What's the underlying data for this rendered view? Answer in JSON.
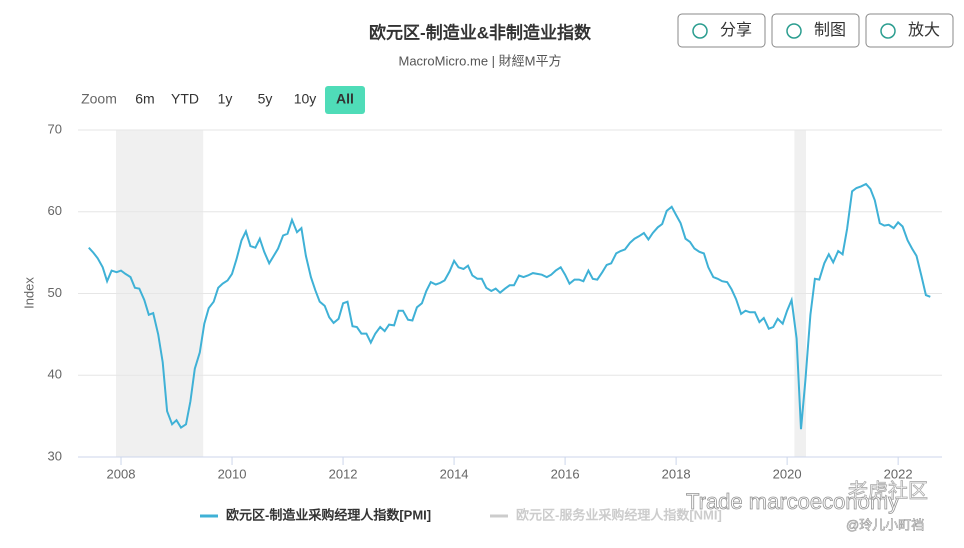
{
  "header": {
    "buttons": [
      "分享",
      "制图",
      "放大"
    ],
    "zoom_label": "Zoom",
    "zoom_options": [
      "6m",
      "YTD",
      "1y",
      "5y",
      "10y",
      "All"
    ],
    "zoom_active": 5
  },
  "watermarks": [
    "Trade marcoeconomy",
    "老虎社区",
    "@玲儿小町裆"
  ],
  "chart_data": {
    "type": "line",
    "title": "欧元区-制造业&非制造业指数",
    "subtitle": "MacroMicro.me | 財經M平方",
    "y_label": "Index",
    "xlim": [
      2007.225,
      2022.79
    ],
    "xticks": [
      2008,
      2010,
      2012,
      2014,
      2016,
      2018,
      2020,
      2022
    ],
    "ylim": [
      30,
      70
    ],
    "yticks": [
      30,
      40,
      50,
      60,
      70
    ],
    "grid": true,
    "shaded_periods": [
      [
        2007.91,
        2009.48
      ],
      [
        2020.13,
        2020.34
      ]
    ],
    "x": [
      2007.42,
      2007.5,
      2007.58,
      2007.67,
      2007.75,
      2007.83,
      2007.92,
      2008,
      2008.08,
      2008.17,
      2008.25,
      2008.33,
      2008.42,
      2008.5,
      2008.58,
      2008.67,
      2008.75,
      2008.83,
      2008.92,
      2009,
      2009.08,
      2009.17,
      2009.25,
      2009.33,
      2009.42,
      2009.5,
      2009.58,
      2009.67,
      2009.75,
      2009.83,
      2009.92,
      2010,
      2010.08,
      2010.17,
      2010.25,
      2010.33,
      2010.42,
      2010.5,
      2010.58,
      2010.67,
      2010.75,
      2010.83,
      2010.92,
      2011,
      2011.08,
      2011.17,
      2011.25,
      2011.33,
      2011.42,
      2011.5,
      2011.58,
      2011.67,
      2011.75,
      2011.83,
      2011.92,
      2012,
      2012.08,
      2012.17,
      2012.25,
      2012.33,
      2012.42,
      2012.5,
      2012.58,
      2012.67,
      2012.75,
      2012.83,
      2012.92,
      2013,
      2013.08,
      2013.17,
      2013.25,
      2013.33,
      2013.42,
      2013.5,
      2013.58,
      2013.67,
      2013.75,
      2013.83,
      2013.92,
      2014,
      2014.08,
      2014.17,
      2014.25,
      2014.33,
      2014.42,
      2014.5,
      2014.58,
      2014.67,
      2014.75,
      2014.83,
      2014.92,
      2015,
      2015.08,
      2015.17,
      2015.25,
      2015.33,
      2015.42,
      2015.5,
      2015.58,
      2015.67,
      2015.75,
      2015.83,
      2015.92,
      2016,
      2016.08,
      2016.17,
      2016.25,
      2016.33,
      2016.42,
      2016.5,
      2016.58,
      2016.67,
      2016.75,
      2016.83,
      2016.92,
      2017,
      2017.08,
      2017.17,
      2017.25,
      2017.33,
      2017.42,
      2017.5,
      2017.58,
      2017.67,
      2017.75,
      2017.83,
      2017.92,
      2018,
      2018.08,
      2018.17,
      2018.25,
      2018.33,
      2018.42,
      2018.5,
      2018.58,
      2018.67,
      2018.75,
      2018.83,
      2018.92,
      2019,
      2019.08,
      2019.17,
      2019.25,
      2019.33,
      2019.42,
      2019.5,
      2019.58,
      2019.67,
      2019.75,
      2019.83,
      2019.92,
      2020,
      2020.08,
      2020.17,
      2020.25,
      2020.33,
      2020.42,
      2020.5,
      2020.58,
      2020.67,
      2020.75,
      2020.83,
      2020.92,
      2021,
      2021.08,
      2021.17,
      2021.25,
      2021.33,
      2021.42,
      2021.5,
      2021.58,
      2021.67,
      2021.75,
      2021.83,
      2021.92,
      2022,
      2022.08,
      2022.17,
      2022.25,
      2022.33,
      2022.42,
      2022.5,
      2022.58
    ],
    "series": [
      {
        "name": "欧元区-制造业采购经理人指数[PMI]",
        "color": "#3fb1d6",
        "values": [
          55.6,
          55.0,
          54.3,
          53.2,
          51.5,
          52.8,
          52.6,
          52.8,
          52.4,
          52.0,
          50.7,
          50.6,
          49.2,
          47.4,
          47.6,
          45.0,
          41.6,
          35.6,
          34.0,
          34.5,
          33.6,
          34.0,
          36.8,
          40.8,
          42.8,
          46.3,
          48.2,
          49.0,
          50.7,
          51.2,
          51.6,
          52.4,
          54.2,
          56.5,
          57.6,
          55.8,
          55.6,
          56.7,
          55.1,
          53.7,
          54.6,
          55.5,
          57.1,
          57.3,
          59.0,
          57.5,
          58.0,
          54.6,
          52.0,
          50.4,
          49.0,
          48.5,
          47.1,
          46.4,
          46.9,
          48.8,
          49.0,
          46.0,
          45.9,
          45.1,
          45.1,
          44.0,
          45.1,
          45.9,
          45.4,
          46.2,
          46.1,
          47.9,
          47.9,
          46.8,
          46.7,
          48.3,
          48.8,
          50.3,
          51.4,
          51.1,
          51.3,
          51.6,
          52.7,
          54.0,
          53.2,
          53.0,
          53.4,
          52.2,
          51.8,
          51.8,
          50.7,
          50.3,
          50.6,
          50.1,
          50.6,
          51.0,
          51.0,
          52.2,
          52.0,
          52.2,
          52.5,
          52.4,
          52.3,
          52.0,
          52.3,
          52.8,
          53.2,
          52.3,
          51.2,
          51.7,
          51.7,
          51.5,
          52.8,
          51.8,
          51.7,
          52.6,
          53.5,
          53.7,
          54.9,
          55.2,
          55.4,
          56.2,
          56.7,
          57.0,
          57.4,
          56.6,
          57.4,
          58.1,
          58.5,
          60.1,
          60.6,
          59.6,
          58.6,
          56.7,
          56.3,
          55.5,
          55.1,
          54.9,
          53.2,
          52.0,
          51.8,
          51.5,
          51.4,
          50.5,
          49.3,
          47.5,
          47.9,
          47.7,
          47.7,
          46.5,
          47.0,
          45.7,
          45.9,
          46.9,
          46.3,
          47.9,
          49.2,
          44.5,
          33.4,
          39.4,
          47.4,
          51.8,
          51.7,
          53.7,
          54.8,
          53.8,
          55.2,
          54.8,
          57.9,
          62.5,
          62.9,
          63.1,
          63.4,
          62.8,
          61.4,
          58.6,
          58.3,
          58.4,
          58.0,
          58.7,
          58.2,
          56.5,
          55.5,
          54.6,
          52.1,
          49.8,
          49.6
        ]
      }
    ],
    "hidden_series": [
      {
        "name": "欧元区-服务业采购经理人指数[NMI]",
        "color": "#cccccc"
      }
    ]
  }
}
